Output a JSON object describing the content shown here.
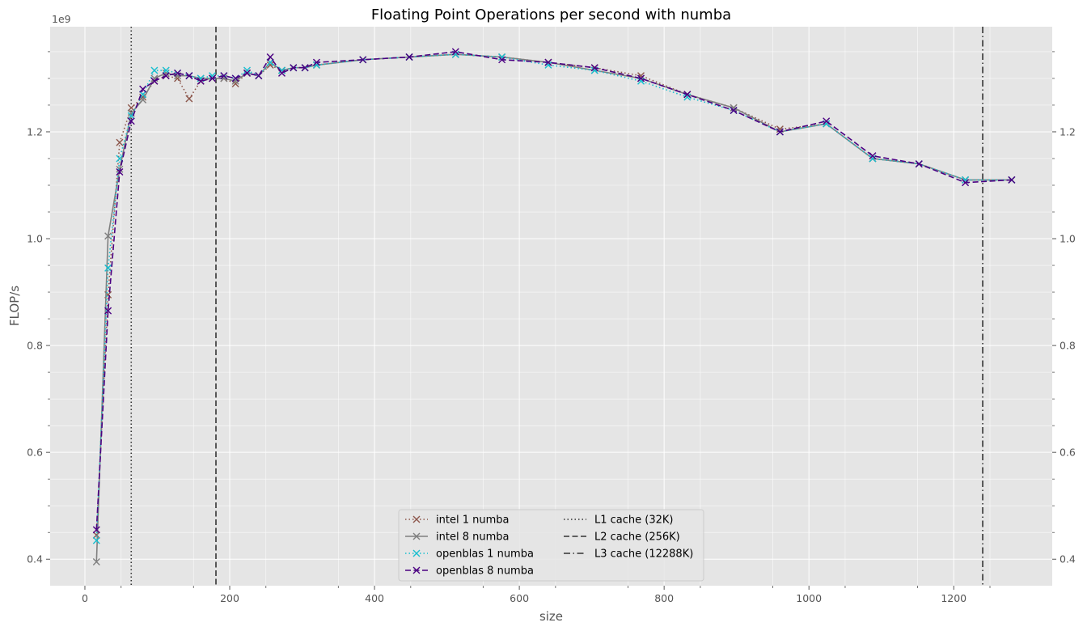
{
  "chart_data": {
    "type": "line",
    "title": "Floating Point Operations per second with numba",
    "xlabel": "size",
    "ylabel": "FLOP/s",
    "y_offset_label": "1e9",
    "y_scale_factor": 1000000000,
    "xlim": [
      -48,
      1336
    ],
    "ylim": [
      0.3504,
      1.3968
    ],
    "x_ticks": [
      0,
      200,
      400,
      600,
      800,
      1000,
      1200
    ],
    "y_ticks": [
      0.4,
      0.6,
      0.8,
      1.0,
      1.2
    ],
    "x_tick_labels": [
      "0",
      "200",
      "400",
      "600",
      "800",
      "1000",
      "1200"
    ],
    "y_tick_labels": [
      "0.4",
      "0.6",
      "0.8",
      "1.0",
      "1.2"
    ],
    "grid": true,
    "legend_position": "bottom-center",
    "series": [
      {
        "name": "intel 1 numba",
        "color": "#8c564b",
        "linestyle": "dotted",
        "marker": "x",
        "x": [
          16,
          32,
          48,
          64,
          80,
          96,
          112,
          128,
          144,
          160,
          176,
          192,
          208,
          224,
          240,
          256,
          272,
          288,
          304,
          320,
          384,
          448,
          512,
          576,
          640,
          704,
          768,
          832,
          896,
          960,
          1024,
          1088,
          1152,
          1216,
          1280
        ],
        "y": [
          0.445,
          0.895,
          1.18,
          1.245,
          1.265,
          1.295,
          1.305,
          1.3,
          1.262,
          1.295,
          1.3,
          1.3,
          1.29,
          1.31,
          1.305,
          1.325,
          1.315,
          1.32,
          1.32,
          1.325,
          1.335,
          1.34,
          1.345,
          1.34,
          1.33,
          1.32,
          1.305,
          1.27,
          1.245,
          1.205,
          1.215,
          1.15,
          1.14,
          1.11,
          1.11
        ]
      },
      {
        "name": "intel 8 numba",
        "color": "#7f7f7f",
        "linestyle": "solid",
        "marker": "x",
        "x": [
          16,
          32,
          48,
          64,
          80,
          96,
          112,
          128,
          144,
          160,
          176,
          192,
          208,
          224,
          240,
          256,
          272,
          288,
          304,
          320,
          384,
          448,
          512,
          576,
          640,
          704,
          768,
          832,
          896,
          960,
          1024,
          1088,
          1152,
          1216,
          1280
        ],
        "y": [
          0.395,
          1.005,
          1.13,
          1.235,
          1.26,
          1.3,
          1.31,
          1.305,
          1.305,
          1.3,
          1.3,
          1.3,
          1.295,
          1.31,
          1.305,
          1.33,
          1.315,
          1.32,
          1.32,
          1.325,
          1.335,
          1.34,
          1.345,
          1.34,
          1.33,
          1.315,
          1.3,
          1.27,
          1.245,
          1.2,
          1.215,
          1.15,
          1.14,
          1.11,
          1.11
        ]
      },
      {
        "name": "openblas 1 numba",
        "color": "#17becf",
        "linestyle": "dotted",
        "marker": "x",
        "x": [
          16,
          32,
          48,
          64,
          80,
          96,
          112,
          128,
          144,
          160,
          176,
          192,
          208,
          224,
          240,
          256,
          272,
          288,
          304,
          320,
          384,
          448,
          512,
          576,
          640,
          704,
          768,
          832,
          896,
          960,
          1024,
          1088,
          1152,
          1216,
          1280
        ],
        "y": [
          0.435,
          0.945,
          1.15,
          1.23,
          1.27,
          1.315,
          1.315,
          1.31,
          1.305,
          1.3,
          1.305,
          1.305,
          1.3,
          1.315,
          1.305,
          1.33,
          1.315,
          1.32,
          1.32,
          1.325,
          1.335,
          1.34,
          1.345,
          1.34,
          1.325,
          1.315,
          1.295,
          1.265,
          1.24,
          1.2,
          1.215,
          1.15,
          1.14,
          1.11,
          1.11
        ]
      },
      {
        "name": "openblas 8 numba",
        "color": "#4b0082",
        "linestyle": "dashed",
        "marker": "x",
        "x": [
          16,
          32,
          48,
          64,
          80,
          96,
          112,
          128,
          144,
          160,
          176,
          192,
          208,
          224,
          240,
          256,
          272,
          288,
          304,
          320,
          384,
          448,
          512,
          576,
          640,
          704,
          768,
          832,
          896,
          960,
          1024,
          1088,
          1152,
          1216,
          1280
        ],
        "y": [
          0.455,
          0.865,
          1.125,
          1.22,
          1.28,
          1.295,
          1.305,
          1.31,
          1.305,
          1.295,
          1.3,
          1.305,
          1.3,
          1.31,
          1.305,
          1.34,
          1.31,
          1.32,
          1.32,
          1.33,
          1.335,
          1.34,
          1.35,
          1.335,
          1.33,
          1.32,
          1.3,
          1.27,
          1.24,
          1.2,
          1.22,
          1.155,
          1.14,
          1.105,
          1.11
        ]
      }
    ],
    "vlines": [
      {
        "name": "L1 cache (32K)",
        "x": 64,
        "color": "#333333",
        "linestyle": "dotted"
      },
      {
        "name": "L2 cache (256K)",
        "x": 181,
        "color": "#333333",
        "linestyle": "dashed"
      },
      {
        "name": "L3 cache (12288K)",
        "x": 1240,
        "color": "#333333",
        "linestyle": "dashdot"
      }
    ]
  }
}
